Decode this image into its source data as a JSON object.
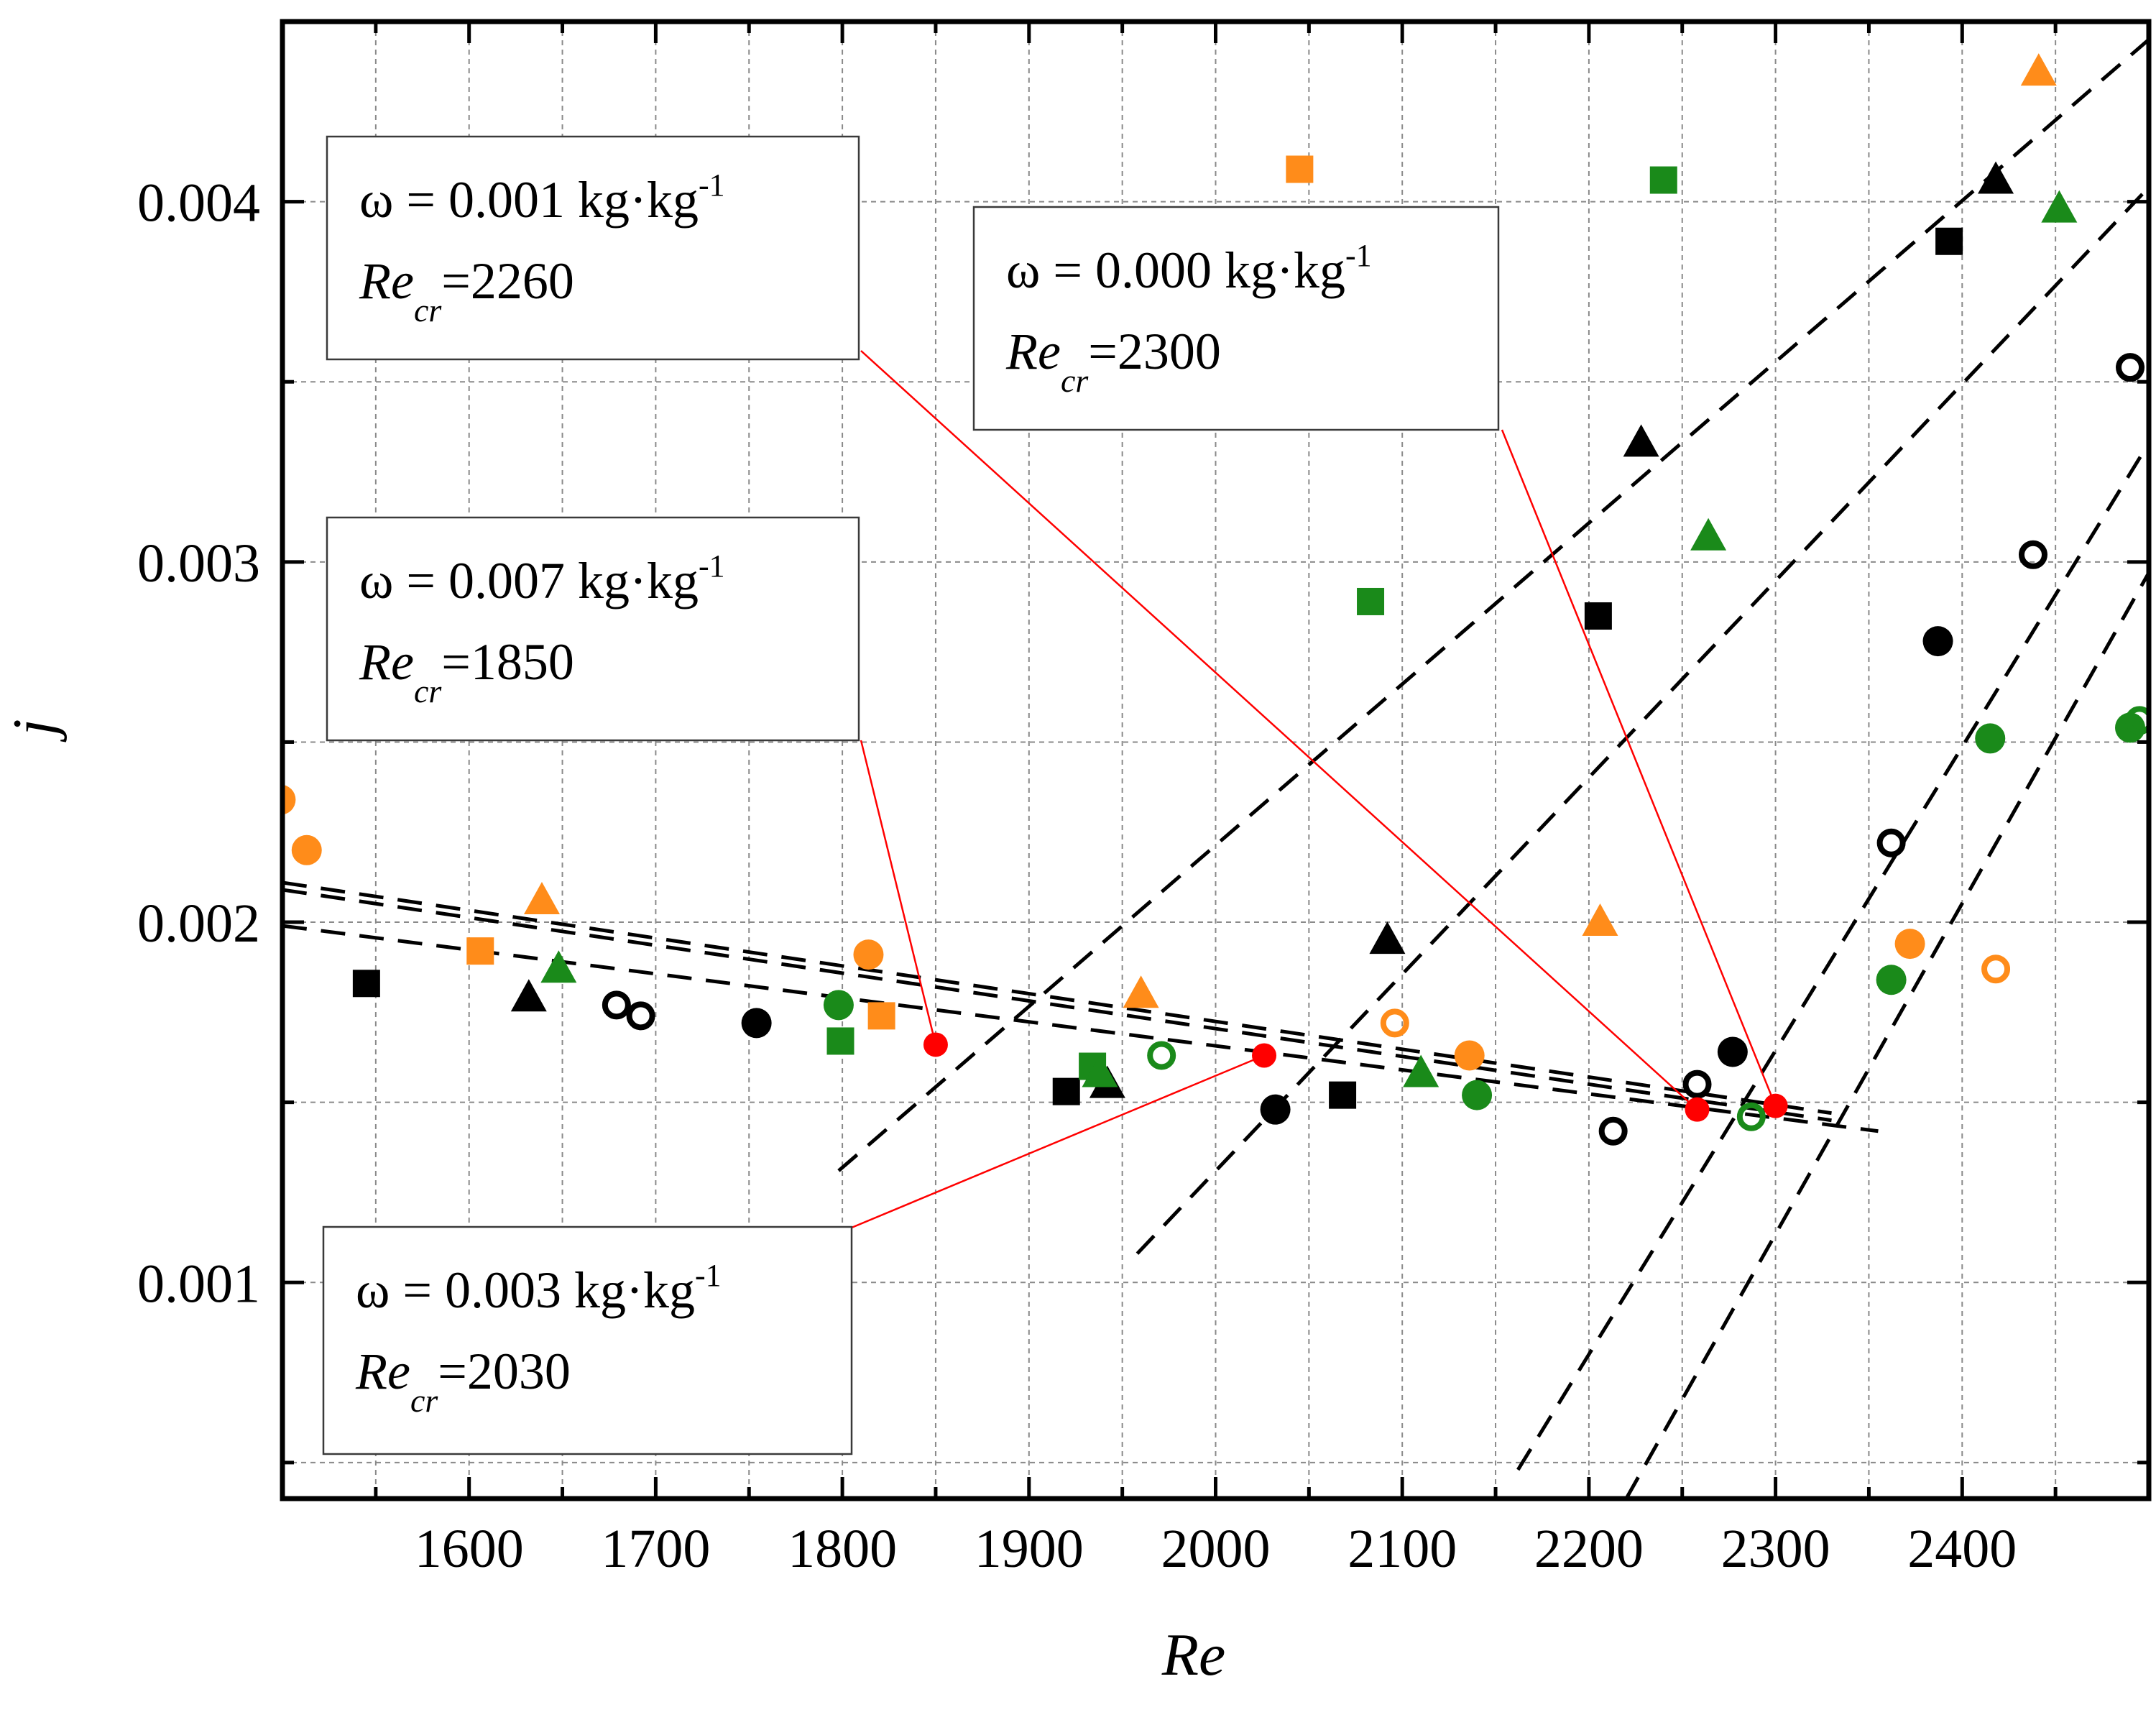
{
  "chart_data": {
    "type": "scatter",
    "xlabel": "Re",
    "ylabel": "j",
    "xlim": [
      1500,
      2500
    ],
    "ylim": [
      0.0004,
      0.0045
    ],
    "x_ticks": [
      1600,
      1700,
      1800,
      1900,
      2000,
      2100,
      2200,
      2300,
      2400
    ],
    "x_tick_labels": [
      "1600",
      "1700",
      "1800",
      "1900",
      "2000",
      "2100",
      "2200",
      "2300",
      "2400"
    ],
    "y_ticks": [
      0.001,
      0.002,
      0.003,
      0.004
    ],
    "y_tick_labels": [
      "0.001",
      "0.002",
      "0.003",
      "0.004"
    ],
    "grid": true,
    "colors": {
      "black": "#000000",
      "green": "#1a8a1a",
      "orange": "#ff8c1a",
      "red": "#ff0000"
    },
    "series": [
      {
        "name": "black-square",
        "marker": "square",
        "color": "black",
        "filled": true,
        "points": [
          [
            1545,
            0.00183
          ],
          [
            1920,
            0.00153
          ],
          [
            2068,
            0.00152
          ],
          [
            2205,
            0.00285
          ],
          [
            2393,
            0.00389
          ]
        ]
      },
      {
        "name": "black-triangle",
        "marker": "triangle",
        "color": "black",
        "filled": true,
        "points": [
          [
            1632,
            0.00179
          ],
          [
            1942,
            0.00155
          ],
          [
            2092,
            0.00195
          ],
          [
            2228,
            0.00333
          ],
          [
            2418,
            0.00406
          ]
        ]
      },
      {
        "name": "black-circle",
        "marker": "circle",
        "color": "black",
        "filled": true,
        "points": [
          [
            1754,
            0.00172
          ],
          [
            2032,
            0.00148
          ],
          [
            2277,
            0.00164
          ],
          [
            2387,
            0.00278
          ]
        ]
      },
      {
        "name": "black-open-circle",
        "marker": "circle",
        "color": "black",
        "filled": false,
        "points": [
          [
            1679,
            0.00177
          ],
          [
            1692,
            0.00174
          ],
          [
            2213,
            0.00142
          ],
          [
            2258,
            0.00155
          ],
          [
            2362,
            0.00222
          ],
          [
            2438,
            0.00302
          ],
          [
            2490,
            0.00354
          ]
        ]
      },
      {
        "name": "green-square",
        "marker": "square",
        "color": "green",
        "filled": true,
        "points": [
          [
            1799,
            0.00167
          ],
          [
            1934,
            0.0016
          ],
          [
            2083,
            0.00289
          ],
          [
            2240,
            0.00406
          ]
        ]
      },
      {
        "name": "green-triangle",
        "marker": "triangle",
        "color": "green",
        "filled": true,
        "points": [
          [
            1648,
            0.00187
          ],
          [
            1938,
            0.00158
          ],
          [
            2110,
            0.00158
          ],
          [
            2264,
            0.00307
          ],
          [
            2452,
            0.00398
          ]
        ]
      },
      {
        "name": "green-circle",
        "marker": "circle",
        "color": "green",
        "filled": true,
        "points": [
          [
            1798,
            0.00177
          ],
          [
            2140,
            0.00152
          ],
          [
            2362,
            0.00184
          ],
          [
            2415,
            0.00251
          ],
          [
            2490,
            0.00254
          ]
        ]
      },
      {
        "name": "green-open-circle",
        "marker": "circle",
        "color": "green",
        "filled": false,
        "points": [
          [
            1971,
            0.00163
          ],
          [
            2287,
            0.00146
          ],
          [
            2495,
            0.00256
          ]
        ]
      },
      {
        "name": "orange-square",
        "marker": "square",
        "color": "orange",
        "filled": true,
        "points": [
          [
            1606,
            0.00192
          ],
          [
            1821,
            0.00174
          ],
          [
            2045,
            0.00409
          ]
        ]
      },
      {
        "name": "orange-triangle",
        "marker": "triangle",
        "color": "orange",
        "filled": true,
        "points": [
          [
            1639,
            0.00206
          ],
          [
            1960,
            0.0018
          ],
          [
            2206,
            0.002
          ],
          [
            2441,
            0.00436
          ]
        ]
      },
      {
        "name": "orange-circle",
        "marker": "circle",
        "color": "orange",
        "filled": true,
        "points": [
          [
            1499,
            0.00234
          ],
          [
            1513,
            0.0022
          ],
          [
            1814,
            0.00191
          ],
          [
            2136,
            0.00163
          ],
          [
            2372,
            0.00194
          ]
        ]
      },
      {
        "name": "orange-open-circle",
        "marker": "circle",
        "color": "orange",
        "filled": false,
        "points": [
          [
            2096,
            0.00172
          ],
          [
            2418,
            0.00187
          ]
        ]
      }
    ],
    "fit_lines": [
      {
        "name": "laminar-fit-1",
        "from": [
          1500,
          0.00211
        ],
        "to": [
          2330,
          0.00147
        ]
      },
      {
        "name": "laminar-fit-2",
        "from": [
          1500,
          0.00209
        ],
        "to": [
          2330,
          0.00145
        ]
      },
      {
        "name": "laminar-fit-3",
        "from": [
          1500,
          0.00199
        ],
        "to": [
          2355,
          0.00142
        ]
      },
      {
        "name": "transition-fit-1",
        "from": [
          1798,
          0.00131
        ],
        "to": [
          2500,
          0.00445
        ]
      },
      {
        "name": "transition-fit-2",
        "from": [
          1958,
          0.00108
        ],
        "to": [
          2500,
          0.00404
        ]
      },
      {
        "name": "transition-fit-3",
        "from": [
          2162,
          0.00048
        ],
        "to": [
          2500,
          0.00333
        ]
      },
      {
        "name": "transition-fit-4",
        "from": [
          2220,
          0.0004
        ],
        "to": [
          2500,
          0.00297
        ]
      }
    ],
    "critical_points": [
      {
        "Re": 1850,
        "j": 0.00166
      },
      {
        "Re": 2026,
        "j": 0.00163
      },
      {
        "Re": 2258,
        "j": 0.00148
      },
      {
        "Re": 2300,
        "j": 0.00149
      }
    ],
    "annotations": [
      {
        "name": "annotation-w-0001",
        "omega": "ω = 0.001 kg·kg",
        "sup": "-1",
        "re_label": "Re",
        "re_sub": "cr",
        "re_value": "=2260",
        "target": [
          2258,
          0.00148
        ]
      },
      {
        "name": "annotation-w-0000",
        "omega": "ω = 0.000 kg·kg",
        "sup": "-1",
        "re_label": "Re",
        "re_sub": "cr",
        "re_value": "=2300",
        "target": [
          2300,
          0.00149
        ]
      },
      {
        "name": "annotation-w-0007",
        "omega": "ω = 0.007 kg·kg",
        "sup": "-1",
        "re_label": "Re",
        "re_sub": "cr",
        "re_value": "=1850",
        "target": [
          1850,
          0.00166
        ]
      },
      {
        "name": "annotation-w-0003",
        "omega": "ω = 0.003 kg·kg",
        "sup": "-1",
        "re_label": "Re",
        "re_sub": "cr",
        "re_value": "=2030",
        "target": [
          2026,
          0.00163
        ]
      }
    ]
  }
}
